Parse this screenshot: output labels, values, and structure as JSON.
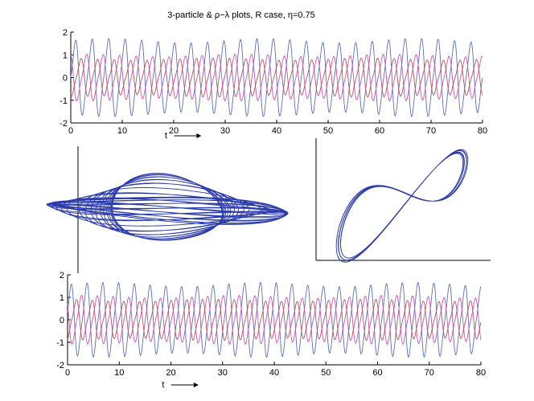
{
  "chart_data": [
    {
      "type": "line",
      "title": "3-particle & ρ−λ plots, R case, η=0.75",
      "xlabel": "t",
      "xlim": [
        0,
        80
      ],
      "ylim": [
        -2,
        2
      ],
      "xticks": [
        0,
        10,
        20,
        30,
        40,
        50,
        60,
        70,
        80
      ],
      "yticks": [
        2,
        1,
        0,
        -1,
        -2
      ],
      "period": 3.2,
      "colors": {
        "blue": "#5b6fb8",
        "magenta": "#d050b0",
        "red": "#c05058"
      },
      "series": [
        {
          "color": "blue",
          "amplitude": 1.5,
          "phase": 0.0
        },
        {
          "color": "magenta",
          "amplitude": 0.9,
          "phase": 2.1
        },
        {
          "color": "red",
          "amplitude": 0.75,
          "phase": 4.2
        }
      ]
    },
    {
      "type": "line",
      "description_free": true,
      "curve": "phase-portrait-left",
      "color": "#2b3aaa",
      "loops": 26
    },
    {
      "type": "line",
      "curve": "phase-portrait-right",
      "color": "#2b3aaa",
      "loops": 6
    },
    {
      "type": "line",
      "xlabel": "t",
      "xlim": [
        0,
        80
      ],
      "ylim": [
        -2,
        2
      ],
      "xticks": [
        0,
        10,
        20,
        30,
        40,
        50,
        60,
        70,
        80
      ],
      "yticks": [
        2,
        1,
        0,
        -1,
        -2
      ],
      "period": 3.05,
      "colors": {
        "blue": "#5b6fb8",
        "magenta": "#d050b0",
        "red": "#c05058"
      },
      "series": [
        {
          "color": "blue",
          "amplitude": 1.45,
          "phase": 0.4
        },
        {
          "color": "magenta",
          "amplitude": 0.95,
          "phase": 2.6
        },
        {
          "color": "red",
          "amplitude": 0.8,
          "phase": 4.6
        }
      ]
    }
  ]
}
